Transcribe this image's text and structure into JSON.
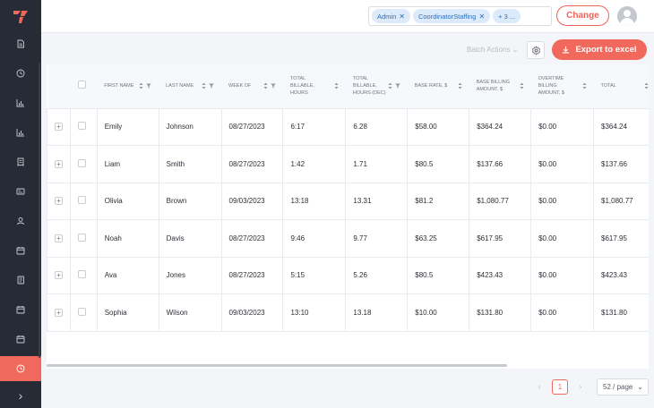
{
  "colors": {
    "accent": "#f0695c",
    "sidebar": "#272b35",
    "chip_bg": "#dceafa",
    "chip_text": "#2f6fb8"
  },
  "sidebar": {
    "icons": [
      "document-icon",
      "clock-icon",
      "bar-chart-icon",
      "bar-chart-icon",
      "receipt-icon",
      "id-card-icon",
      "user-icon",
      "calendar-icon",
      "document-list-icon",
      "calendar-icon",
      "calendar-icon",
      "clock-icon"
    ],
    "active_index": 11,
    "expand_glyph": "›"
  },
  "header": {
    "chips": [
      {
        "label": "Admin"
      },
      {
        "label": "CoordinatorStaffing"
      },
      {
        "label": "+ 3 ..."
      }
    ],
    "change_label": "Change"
  },
  "toolbar": {
    "batch_actions_label": "Batch Actions",
    "export_label": "Export to excel"
  },
  "table": {
    "columns": [
      {
        "label": "",
        "type": "expand"
      },
      {
        "label": "",
        "type": "checkbox"
      },
      {
        "label": "First Name",
        "sort": true,
        "filter": true
      },
      {
        "label": "Last Name",
        "sort": true,
        "filter": true
      },
      {
        "label": "Week of",
        "sort": true,
        "filter": true
      },
      {
        "label": "Total Billable, Hours",
        "sort": true,
        "filter": false
      },
      {
        "label": "Total Billable, Hours (Dec)",
        "sort": true,
        "filter": true
      },
      {
        "label": "Base Rate, $",
        "sort": true,
        "filter": false
      },
      {
        "label": "Base Billing Amount, $",
        "sort": true,
        "filter": false
      },
      {
        "label": "Overtime Billing Amount, $",
        "sort": true,
        "filter": false
      },
      {
        "label": "Total",
        "sort": true,
        "filter": false
      }
    ],
    "rows": [
      [
        "Emily",
        "Johnson",
        "08/27/2023",
        "6:17",
        "6.28",
        "$58.00",
        "$364.24",
        "$0.00",
        "$364.24"
      ],
      [
        "Liam",
        "Smith",
        "08/27/2023",
        "1:42",
        "1.71",
        "$80.5",
        "$137.66",
        "$0.00",
        "$137.66"
      ],
      [
        "Olivia",
        "Brown",
        "09/03/2023",
        "13:18",
        "13.31",
        "$81.2",
        "$1,080.77",
        "$0.00",
        "$1,080.77"
      ],
      [
        "Noah",
        "Davis",
        "08/27/2023",
        "9:46",
        "9.77",
        "$63.25",
        "$617.95",
        "$0.00",
        "$617.95"
      ],
      [
        "Ava",
        "Jones",
        "08/27/2023",
        "5:15",
        "5.26",
        "$80.5",
        "$423.43",
        "$0.00",
        "$423.43"
      ],
      [
        "Sophia",
        "Wilson",
        "09/03/2023",
        "13:10",
        "13.18",
        "$10.00",
        "$131.80",
        "$0.00",
        "$131.80"
      ]
    ]
  },
  "pagination": {
    "current_page": "1",
    "page_size_label": "52 / page"
  }
}
